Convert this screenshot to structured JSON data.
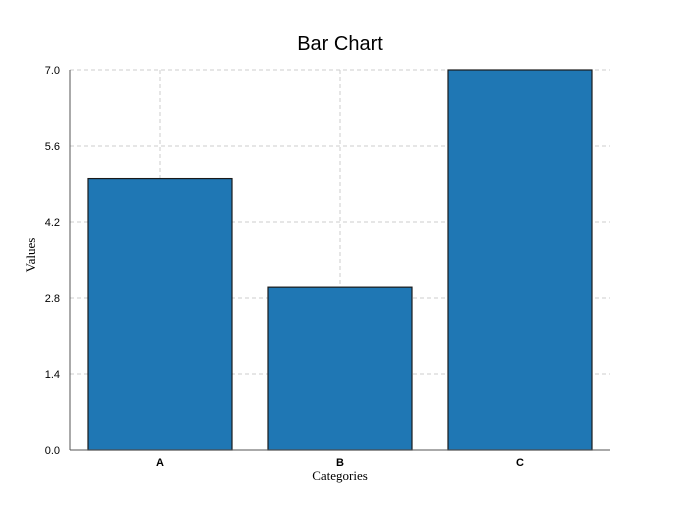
{
  "chart_data": {
    "type": "bar",
    "title": "Bar Chart",
    "xlabel": "Categories",
    "ylabel": "Values",
    "categories": [
      "A",
      "B",
      "C"
    ],
    "values": [
      5,
      3,
      7
    ],
    "ylim": [
      0,
      7
    ],
    "yticks": [
      "0.0",
      "1.4",
      "2.8",
      "4.2",
      "5.6",
      "7.0"
    ],
    "grid": true,
    "bar_color": "#1f77b4"
  }
}
